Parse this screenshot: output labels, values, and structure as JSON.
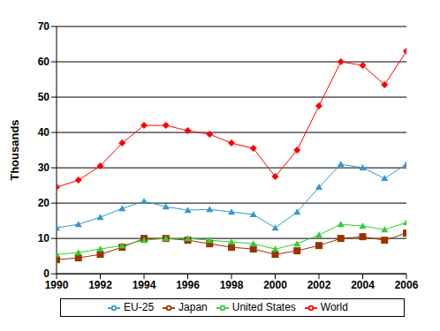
{
  "chart_data": {
    "type": "line",
    "y_label": "Thousands",
    "x": [
      1990,
      1991,
      1992,
      1993,
      1994,
      1995,
      1996,
      1997,
      1998,
      1999,
      2000,
      2001,
      2002,
      2003,
      2004,
      2005,
      2006
    ],
    "xlim": [
      1990,
      2006
    ],
    "xticks": [
      1990,
      1992,
      1994,
      1996,
      1998,
      2000,
      2002,
      2004,
      2006
    ],
    "ylim": [
      0,
      70
    ],
    "yticks": [
      0,
      10,
      20,
      30,
      40,
      50,
      60,
      70
    ],
    "grid": true,
    "legend": "bottom",
    "series": [
      {
        "name": "EU-25",
        "color": "#3399cc",
        "marker": "triangle",
        "values": [
          13,
          14,
          16,
          18.5,
          20.5,
          19,
          18,
          18.2,
          17.5,
          16.8,
          13,
          17.5,
          24.5,
          31,
          30,
          27,
          31
        ]
      },
      {
        "name": "Japan",
        "color": "#993300",
        "marker": "square",
        "values": [
          4,
          4.5,
          5.5,
          7.5,
          10,
          10,
          9.5,
          8.5,
          7.5,
          7,
          5.5,
          6.5,
          8,
          10,
          10.5,
          9.5,
          11.5
        ]
      },
      {
        "name": "United States",
        "color": "#33cc33",
        "marker": "triangle",
        "values": [
          5.5,
          6,
          7,
          8,
          9.5,
          10,
          10,
          9.5,
          9,
          8.5,
          7,
          8.5,
          11,
          14,
          13.5,
          12.5,
          14.5
        ]
      },
      {
        "name": "World",
        "color": "#ff0000",
        "marker": "diamond",
        "values": [
          24.5,
          26.5,
          30.5,
          37,
          42,
          42,
          40.5,
          39.5,
          37,
          35.5,
          27.5,
          35,
          47.5,
          60,
          59,
          53.5,
          63
        ]
      }
    ]
  }
}
